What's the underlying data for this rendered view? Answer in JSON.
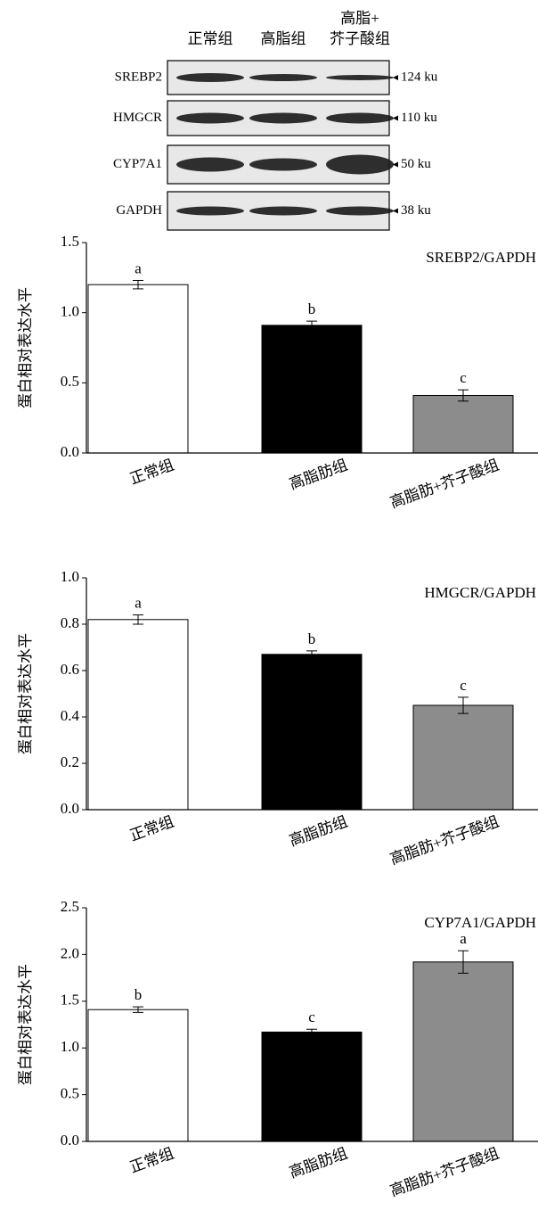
{
  "blot": {
    "lanes": [
      [
        "正常组"
      ],
      [
        "高脂组"
      ],
      [
        "高脂+",
        "芥子酸组"
      ]
    ],
    "rows": [
      {
        "protein": "SREBP2",
        "size": "124 ku"
      },
      {
        "protein": "HMGCR",
        "size": "110 ku"
      },
      {
        "protein": "CYP7A1",
        "size": "50 ku"
      },
      {
        "protein": "GAPDH",
        "size": "38 ku"
      }
    ]
  },
  "chart_data": [
    {
      "type": "bar",
      "title": "SREBP2/GAPDH",
      "ylabel": "蛋白相对表达水平",
      "categories": [
        "正常组",
        "高脂肪组",
        "高脂肪+芥子酸组"
      ],
      "values": [
        1.2,
        0.91,
        0.41
      ],
      "errors": [
        0.03,
        0.03,
        0.04
      ],
      "labels": [
        "a",
        "b",
        "c"
      ],
      "colors": [
        "#ffffff",
        "#000000",
        "#8c8c8c"
      ],
      "ylim": [
        0,
        1.5
      ],
      "yticks": [
        {
          "value": 0,
          "label": "0.0"
        },
        0.5,
        {
          "value": 1,
          "label": "1.0"
        },
        1.5
      ]
    },
    {
      "type": "bar",
      "title": "HMGCR/GAPDH",
      "ylabel": "蛋白相对表达水平",
      "categories": [
        "正常组",
        "高脂肪组",
        "高脂肪+芥子酸组"
      ],
      "values": [
        0.82,
        0.67,
        0.45
      ],
      "errors": [
        0.02,
        0.015,
        0.035
      ],
      "labels": [
        "a",
        "b",
        "c"
      ],
      "colors": [
        "#ffffff",
        "#000000",
        "#8c8c8c"
      ],
      "ylim": [
        0,
        1
      ],
      "yticks": [
        {
          "value": 0,
          "label": "0.0"
        },
        0.2,
        0.4,
        0.6,
        0.8,
        {
          "value": 1,
          "label": "1.0"
        }
      ]
    },
    {
      "type": "bar",
      "title": "CYP7A1/GAPDH",
      "ylabel": "蛋白相对表达水平",
      "categories": [
        "正常组",
        "高脂肪组",
        "高脂肪+芥子酸组"
      ],
      "values": [
        1.41,
        1.17,
        1.92
      ],
      "errors": [
        0.03,
        0.03,
        0.12
      ],
      "labels": [
        "b",
        "c",
        "a"
      ],
      "colors": [
        "#ffffff",
        "#000000",
        "#8c8c8c"
      ],
      "ylim": [
        0,
        2.5
      ],
      "yticks": [
        {
          "value": 0,
          "label": "0.0"
        },
        0.5,
        {
          "value": 1,
          "label": "1.0"
        },
        1.5,
        {
          "value": 2,
          "label": "2.0"
        },
        2.5
      ]
    }
  ]
}
